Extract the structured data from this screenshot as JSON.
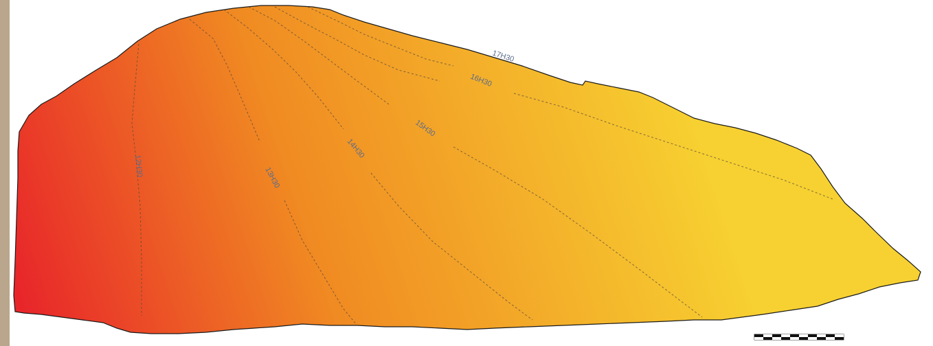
{
  "map": {
    "colors": {
      "warm_red": "#e8262a",
      "orange": "#f08a22",
      "yellow": "#f7d131",
      "outline": "#1a1a1a",
      "contour": "#5a4a3a",
      "label": "#5b6b8a"
    },
    "contours": [
      {
        "label": "12H30"
      },
      {
        "label": "13H30"
      },
      {
        "label": "14H30"
      },
      {
        "label": "15H30"
      },
      {
        "label": "16H30"
      },
      {
        "label": "17H30"
      }
    ],
    "scale_bar": {
      "segments": 10,
      "colors": [
        "#111111",
        "#ffffff"
      ]
    }
  }
}
